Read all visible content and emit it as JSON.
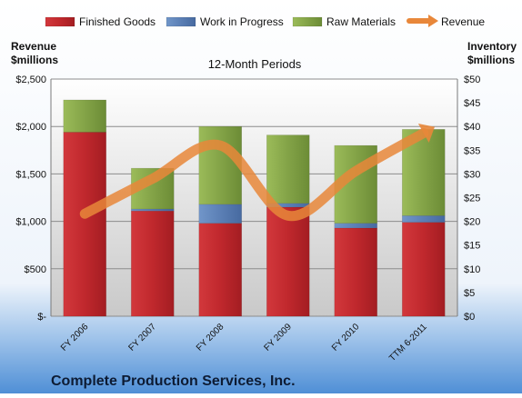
{
  "chart_data": {
    "type": "bar",
    "title": "12-Month Periods",
    "footer_title": "Complete Production Services, Inc.",
    "left_axis": {
      "label_lines": [
        "Revenue",
        "$millions"
      ],
      "ylim": [
        0,
        2500
      ],
      "ticks": [
        0,
        500,
        1000,
        1500,
        2000,
        2500
      ],
      "tick_labels": [
        "$-",
        "$500",
        "$1,000",
        "$1,500",
        "$2,000",
        "$2,500"
      ]
    },
    "right_axis": {
      "label_lines": [
        "Inventory",
        "$millions"
      ],
      "ylim": [
        0,
        50
      ],
      "ticks": [
        0,
        5,
        10,
        15,
        20,
        25,
        30,
        35,
        40,
        45,
        50
      ],
      "tick_labels": [
        "$0",
        "$5",
        "$10",
        "$15",
        "$20",
        "$25",
        "$30",
        "$35",
        "$40",
        "$45",
        "$50"
      ]
    },
    "categories": [
      "FY 2006",
      "FY 2007",
      "FY 2008",
      "FY 2009",
      "FY 2010",
      "TTM 6-2011"
    ],
    "stacked": true,
    "bar_axis": "right",
    "series": [
      {
        "name": "Finished Goods",
        "color": "#c0282d",
        "axis": "right",
        "values": [
          38.8,
          22.2,
          19.6,
          23.0,
          18.6,
          19.8
        ]
      },
      {
        "name": "Work in Progress",
        "color": "#5b7fb5",
        "axis": "right",
        "values": [
          0.0,
          0.4,
          4.0,
          0.8,
          1.0,
          1.4
        ]
      },
      {
        "name": "Raw Materials",
        "color": "#83a347",
        "axis": "right",
        "values": [
          6.8,
          8.6,
          16.4,
          14.4,
          16.4,
          18.2
        ]
      }
    ],
    "line_series": {
      "name": "Revenue",
      "color": "#e8873a",
      "axis": "left",
      "values": [
        1080,
        1450,
        1800,
        1060,
        1530,
        1930
      ]
    },
    "legend_position": "top",
    "grid": true
  }
}
